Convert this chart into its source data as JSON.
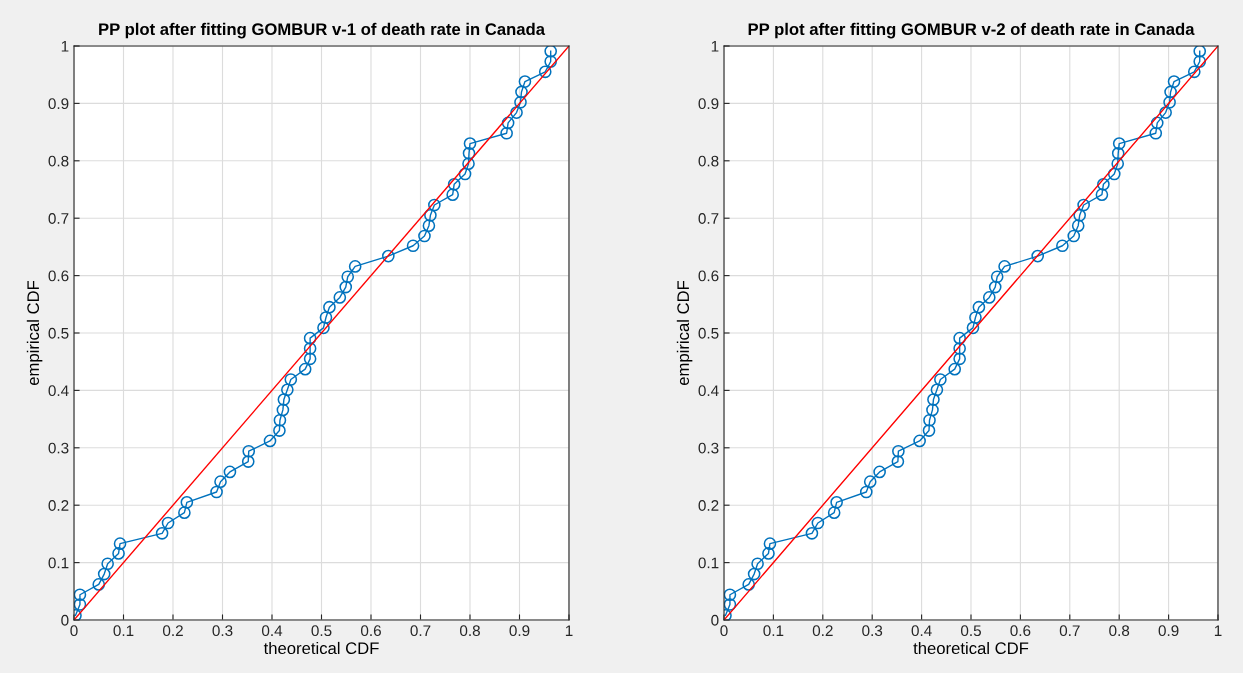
{
  "chart_data": [
    {
      "type": "line",
      "title": "PP plot after fitting GOMBUR v-1 of death rate in Canada",
      "xlabel": "theoretical CDF",
      "ylabel": "empirical CDF",
      "xlim": [
        0,
        1
      ],
      "ylim": [
        0,
        1
      ],
      "xticks": [
        0,
        0.1,
        0.2,
        0.3,
        0.4,
        0.5,
        0.6,
        0.7,
        0.8,
        0.9,
        1
      ],
      "yticks": [
        0,
        0.1,
        0.2,
        0.3,
        0.4,
        0.5,
        0.6,
        0.7,
        0.8,
        0.9,
        1
      ],
      "grid": true,
      "series": [
        {
          "color": "#0072bd",
          "marker": "circle",
          "x": [
            0.003,
            0.012,
            0.012,
            0.05,
            0.061,
            0.068,
            0.09,
            0.093,
            0.178,
            0.19,
            0.223,
            0.228,
            0.288,
            0.296,
            0.315,
            0.352,
            0.353,
            0.396,
            0.415,
            0.416,
            0.422,
            0.424,
            0.431,
            0.438,
            0.467,
            0.477,
            0.477,
            0.477,
            0.504,
            0.509,
            0.516,
            0.537,
            0.549,
            0.553,
            0.568,
            0.635,
            0.685,
            0.708,
            0.717,
            0.72,
            0.728,
            0.765,
            0.768,
            0.79,
            0.797,
            0.798,
            0.8,
            0.874,
            0.877,
            0.894,
            0.902,
            0.904,
            0.911,
            0.952,
            0.963,
            0.963
          ],
          "values": [
            0.008,
            0.027,
            0.044,
            0.062,
            0.08,
            0.098,
            0.116,
            0.133,
            0.151,
            0.169,
            0.187,
            0.205,
            0.223,
            0.241,
            0.258,
            0.276,
            0.294,
            0.312,
            0.33,
            0.348,
            0.366,
            0.384,
            0.401,
            0.419,
            0.437,
            0.455,
            0.473,
            0.491,
            0.509,
            0.527,
            0.545,
            0.562,
            0.58,
            0.598,
            0.616,
            0.634,
            0.652,
            0.669,
            0.687,
            0.705,
            0.723,
            0.741,
            0.759,
            0.777,
            0.795,
            0.813,
            0.83,
            0.848,
            0.866,
            0.884,
            0.902,
            0.92,
            0.938,
            0.955,
            0.973,
            0.991
          ]
        },
        {
          "color": "#ff0000",
          "marker": "none",
          "x": [
            0,
            1
          ],
          "values": [
            0,
            1
          ]
        }
      ]
    },
    {
      "type": "line",
      "title": "PP plot after fitting GOMBUR v-2 of death rate in Canada",
      "xlabel": "theoretical CDF",
      "ylabel": "empirical CDF",
      "xlim": [
        0,
        1
      ],
      "ylim": [
        0,
        1
      ],
      "xticks": [
        0,
        0.1,
        0.2,
        0.3,
        0.4,
        0.5,
        0.6,
        0.7,
        0.8,
        0.9,
        1
      ],
      "yticks": [
        0,
        0.1,
        0.2,
        0.3,
        0.4,
        0.5,
        0.6,
        0.7,
        0.8,
        0.9,
        1
      ],
      "grid": true,
      "series": [
        {
          "color": "#0072bd",
          "marker": "circle",
          "x": [
            0.003,
            0.012,
            0.012,
            0.05,
            0.061,
            0.068,
            0.09,
            0.093,
            0.178,
            0.19,
            0.223,
            0.228,
            0.288,
            0.296,
            0.315,
            0.352,
            0.353,
            0.396,
            0.415,
            0.416,
            0.422,
            0.424,
            0.431,
            0.438,
            0.467,
            0.477,
            0.477,
            0.477,
            0.504,
            0.509,
            0.516,
            0.537,
            0.549,
            0.553,
            0.568,
            0.635,
            0.685,
            0.708,
            0.717,
            0.72,
            0.728,
            0.765,
            0.768,
            0.79,
            0.797,
            0.798,
            0.8,
            0.874,
            0.877,
            0.894,
            0.902,
            0.904,
            0.911,
            0.952,
            0.963,
            0.963
          ],
          "values": [
            0.008,
            0.027,
            0.044,
            0.062,
            0.08,
            0.098,
            0.116,
            0.133,
            0.151,
            0.169,
            0.187,
            0.205,
            0.223,
            0.241,
            0.258,
            0.276,
            0.294,
            0.312,
            0.33,
            0.348,
            0.366,
            0.384,
            0.401,
            0.419,
            0.437,
            0.455,
            0.473,
            0.491,
            0.509,
            0.527,
            0.545,
            0.562,
            0.58,
            0.598,
            0.616,
            0.634,
            0.652,
            0.669,
            0.687,
            0.705,
            0.723,
            0.741,
            0.759,
            0.777,
            0.795,
            0.813,
            0.83,
            0.848,
            0.866,
            0.884,
            0.902,
            0.92,
            0.938,
            0.955,
            0.973,
            0.991
          ]
        },
        {
          "color": "#ff0000",
          "marker": "none",
          "x": [
            0,
            1
          ],
          "values": [
            0,
            1
          ]
        }
      ]
    }
  ]
}
